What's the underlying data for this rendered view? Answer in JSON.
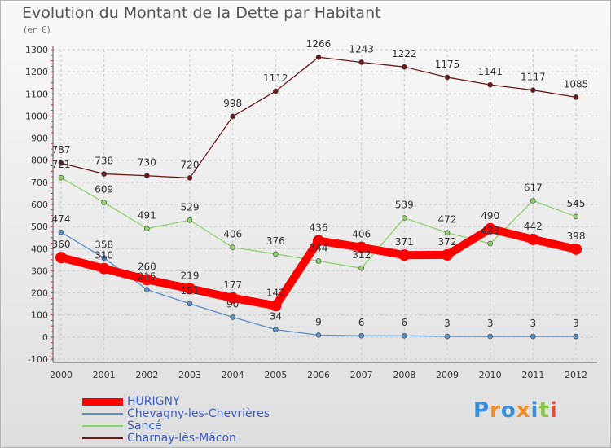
{
  "chart_data": {
    "type": "line",
    "title": "Evolution du Montant de la Dette par Habitant",
    "subtitle": "(en €)",
    "x": [
      "2000",
      "2001",
      "2002",
      "2003",
      "2004",
      "2005",
      "2006",
      "2007",
      "2008",
      "2009",
      "2010",
      "2011",
      "2012"
    ],
    "ylim": [
      -100,
      1300
    ],
    "yticks": [
      -100,
      0,
      100,
      200,
      300,
      400,
      500,
      600,
      700,
      800,
      900,
      1000,
      1100,
      1200,
      1300
    ],
    "grid": true,
    "legend_position": "bottom-left",
    "series": [
      {
        "name": "HURIGNY",
        "color": "#ff0000",
        "values": [
          360,
          310,
          260,
          219,
          177,
          142,
          436,
          406,
          371,
          372,
          490,
          442,
          398
        ]
      },
      {
        "name": "Chevagny-les-Chevrières",
        "color": "#5b8fc7",
        "values": [
          474,
          358,
          215,
          151,
          90,
          34,
          9,
          6,
          6,
          3,
          3,
          3,
          3
        ]
      },
      {
        "name": "Sancé",
        "color": "#8fd16a",
        "values": [
          721,
          609,
          491,
          529,
          406,
          376,
          344,
          312,
          539,
          472,
          423,
          617,
          545
        ]
      },
      {
        "name": "Charnay-lès-Mâcon",
        "color": "#6b1a1a",
        "values": [
          787,
          738,
          730,
          720,
          998,
          1112,
          1266,
          1243,
          1222,
          1175,
          1141,
          1117,
          1085
        ]
      }
    ]
  },
  "logo": {
    "letters": [
      "P",
      "r",
      "o",
      "x",
      "i",
      "t",
      "i"
    ],
    "colors": [
      "#3a8fd8",
      "#f08a24",
      "#3a8fd8",
      "#f08a24",
      "#3a8fd8",
      "#8bc34a",
      "#e84b3c"
    ]
  }
}
